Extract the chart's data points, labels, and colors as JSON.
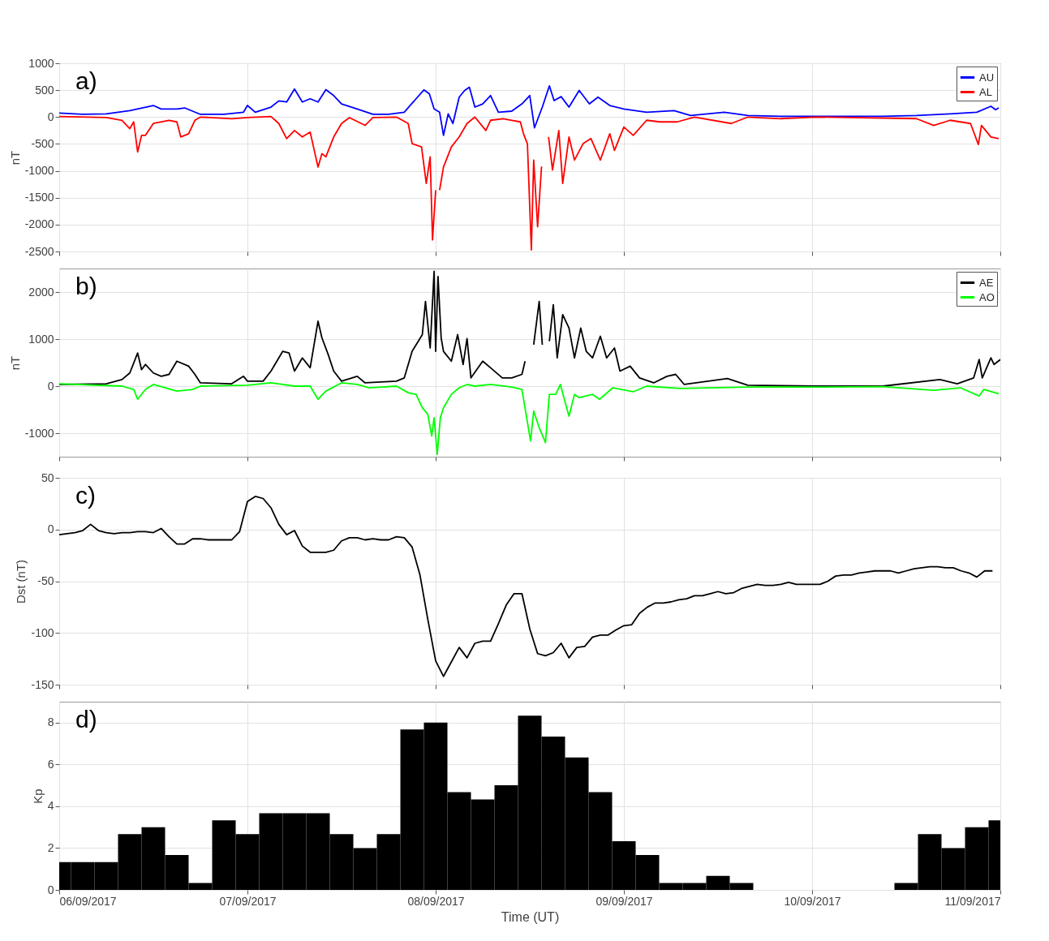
{
  "chart_data": [
    {
      "type": "line",
      "ylabel": "nT",
      "annotations": [
        "a)"
      ],
      "xlim": [
        "2017-09-06T00:00",
        "2017-09-11T00:00"
      ],
      "ylim": [
        -2500,
        1000
      ],
      "yticks": [
        -2500,
        -2000,
        -1500,
        -1000,
        -500,
        0,
        500,
        1000
      ],
      "xticks": [
        {
          "value": "2017-09-06T00:00",
          "label": null
        },
        {
          "value": "2017-09-07T00:00",
          "label": null
        },
        {
          "value": "2017-09-08T00:00",
          "label": null
        },
        {
          "value": "2017-09-09T00:00",
          "label": null
        },
        {
          "value": "2017-09-10T00:00",
          "label": null
        },
        {
          "value": "2017-09-11T00:00",
          "label": null
        }
      ],
      "tick_labels": "y",
      "grid": true,
      "legend": "top right",
      "line_style": "solid",
      "marker": "none",
      "series": [
        {
          "name": "AU",
          "color": "#0000ff",
          "x": [
            "2017-09-06T00:00",
            "2017-09-06T03:00",
            "2017-09-06T06:00",
            "2017-09-06T09:00",
            "2017-09-06T12:00",
            "2017-09-06T13:00",
            "2017-09-06T15:00",
            "2017-09-06T16:00",
            "2017-09-06T18:00",
            "2017-09-06T21:00",
            "2017-09-06T23:30",
            "2017-09-07T00:00",
            "2017-09-07T01:00",
            "2017-09-07T03:00",
            "2017-09-07T04:00",
            "2017-09-07T05:00",
            "2017-09-07T06:00",
            "2017-09-07T07:00",
            "2017-09-07T08:00",
            "2017-09-07T09:00",
            "2017-09-07T10:00",
            "2017-09-07T11:00",
            "2017-09-07T12:00",
            "2017-09-07T14:00",
            "2017-09-07T16:00",
            "2017-09-07T18:00",
            "2017-09-07T20:00",
            "2017-09-07T21:30",
            "2017-09-07T22:30",
            "2017-09-07T23:12",
            "2017-09-07T23:48",
            "2017-09-08T00:30",
            "2017-09-08T01:00",
            "2017-09-08T01:36",
            "2017-09-08T02:12",
            "2017-09-08T03:00",
            "2017-09-08T03:42",
            "2017-09-08T04:18",
            "2017-09-08T05:00",
            "2017-09-08T06:00",
            "2017-09-08T07:00",
            "2017-09-08T08:00",
            "2017-09-08T09:42",
            "2017-09-08T11:00",
            "2017-09-08T12:00",
            "2017-09-08T12:36",
            "2017-09-08T13:36",
            "2017-09-08T14:30",
            "2017-09-08T15:06",
            "2017-09-08T16:00",
            "2017-09-08T17:00",
            "2017-09-08T18:18",
            "2017-09-08T19:36",
            "2017-09-08T20:42",
            "2017-09-08T22:12",
            "2017-09-09T00:00",
            "2017-09-09T02:54",
            "2017-09-09T06:24",
            "2017-09-09T08:30",
            "2017-09-09T12:48",
            "2017-09-09T15:48",
            "2017-09-09T20:00",
            "2017-09-10T00:24",
            "2017-09-10T04:42",
            "2017-09-10T09:00",
            "2017-09-10T13:18",
            "2017-09-10T17:36",
            "2017-09-10T21:00",
            "2017-09-10T22:48",
            "2017-09-10T23:24",
            "2017-09-10T23:48"
          ],
          "values": [
            75,
            50,
            60,
            120,
            215,
            150,
            150,
            170,
            50,
            50,
            90,
            215,
            90,
            185,
            300,
            280,
            520,
            280,
            340,
            280,
            510,
            400,
            245,
            150,
            50,
            50,
            90,
            340,
            505,
            430,
            150,
            90,
            -340,
            60,
            -120,
            370,
            495,
            555,
            185,
            245,
            400,
            90,
            110,
            245,
            400,
            -200,
            185,
            580,
            305,
            380,
            185,
            495,
            245,
            370,
            215,
            150,
            90,
            120,
            30,
            90,
            30,
            15,
            15,
            15,
            15,
            30,
            60,
            90,
            200,
            135,
            170
          ]
        },
        {
          "name": "AL",
          "color": "#ff0000",
          "x": [
            "2017-09-06T00:00",
            "2017-09-06T06:00",
            "2017-09-06T08:00",
            "2017-09-06T09:00",
            "2017-09-06T09:30",
            "2017-09-06T10:00",
            "2017-09-06T10:30",
            "2017-09-06T11:00",
            "2017-09-06T12:00",
            "2017-09-06T14:00",
            "2017-09-06T15:00",
            "2017-09-06T15:30",
            "2017-09-06T16:30",
            "2017-09-06T17:18",
            "2017-09-06T18:00",
            "2017-09-06T22:00",
            "2017-09-07T00:00",
            "2017-09-07T03:00",
            "2017-09-07T04:00",
            "2017-09-07T05:00",
            "2017-09-07T06:00",
            "2017-09-07T07:00",
            "2017-09-07T08:00",
            "2017-09-07T09:00",
            "2017-09-07T09:30",
            "2017-09-07T10:00",
            "2017-09-07T11:00",
            "2017-09-07T12:00",
            "2017-09-07T13:00",
            "2017-09-07T15:00",
            "2017-09-07T16:00",
            "2017-09-07T19:00",
            "2017-09-07T20:30",
            "2017-09-07T21:00",
            "2017-09-07T22:12",
            "2017-09-07T22:48",
            "2017-09-07T23:18",
            "2017-09-07T23:36",
            "2017-09-08T00:00",
            "2017-09-08T00:12",
            "2017-09-08T00:30",
            "2017-09-08T01:00",
            "2017-09-08T02:00",
            "2017-09-08T03:00",
            "2017-09-08T04:00",
            "2017-09-08T05:00",
            "2017-09-08T06:24",
            "2017-09-08T07:00",
            "2017-09-08T08:36",
            "2017-09-08T09:42",
            "2017-09-08T10:48",
            "2017-09-08T11:12",
            "2017-09-08T11:42",
            "2017-09-08T12:12",
            "2017-09-08T12:30",
            "2017-09-08T13:00",
            "2017-09-08T13:30",
            "2017-09-08T14:00",
            "2017-09-08T14:24",
            "2017-09-08T14:54",
            "2017-09-08T15:42",
            "2017-09-08T16:12",
            "2017-09-08T17:00",
            "2017-09-08T17:42",
            "2017-09-08T18:48",
            "2017-09-08T19:48",
            "2017-09-08T21:00",
            "2017-09-08T22:12",
            "2017-09-08T22:48",
            "2017-09-09T00:00",
            "2017-09-09T01:12",
            "2017-09-09T02:54",
            "2017-09-09T04:36",
            "2017-09-09T06:48",
            "2017-09-09T09:00",
            "2017-09-09T13:42",
            "2017-09-09T15:48",
            "2017-09-09T20:00",
            "2017-09-10T00:24",
            "2017-09-10T04:42",
            "2017-09-10T13:18",
            "2017-09-10T15:30",
            "2017-09-10T17:36",
            "2017-09-10T20:12",
            "2017-09-10T21:12",
            "2017-09-10T21:36",
            "2017-09-10T22:48",
            "2017-09-10T23:48"
          ],
          "values": [
            10,
            -10,
            -60,
            -215,
            -90,
            -650,
            -340,
            -340,
            -120,
            -60,
            -90,
            -370,
            -310,
            -60,
            0,
            -30,
            -10,
            10,
            -120,
            -400,
            -250,
            -370,
            -280,
            -930,
            -680,
            -740,
            -370,
            -120,
            -10,
            -155,
            -10,
            0,
            -120,
            -495,
            -555,
            -1235,
            -740,
            -2285,
            -1360,
            null,
            -1360,
            -930,
            -555,
            -370,
            -120,
            0,
            -250,
            -60,
            -30,
            -60,
            -90,
            -310,
            -500,
            -2470,
            -800,
            -2040,
            -920,
            null,
            -370,
            -985,
            -250,
            -1235,
            -370,
            -800,
            -495,
            -400,
            -800,
            -310,
            -620,
            -185,
            -340,
            -60,
            -90,
            -90,
            0,
            -120,
            0,
            -30,
            0,
            -10,
            -30,
            -155,
            -60,
            -120,
            -510,
            -155,
            -370,
            -400
          ]
        }
      ]
    },
    {
      "type": "line",
      "ylabel": "nT",
      "annotations": [
        "b)"
      ],
      "xlim": [
        "2017-09-06T00:00",
        "2017-09-11T00:00"
      ],
      "ylim": [
        -1500,
        2500
      ],
      "yticks": [
        -1000,
        0,
        1000,
        2000
      ],
      "xticks": [
        {
          "value": "2017-09-06T00:00",
          "label": null
        },
        {
          "value": "2017-09-07T00:00",
          "label": null
        },
        {
          "value": "2017-09-08T00:00",
          "label": null
        },
        {
          "value": "2017-09-09T00:00",
          "label": null
        },
        {
          "value": "2017-09-10T00:00",
          "label": null
        },
        {
          "value": "2017-09-11T00:00",
          "label": null
        }
      ],
      "tick_labels": "y",
      "grid": true,
      "legend": "top right",
      "line_style": "solid",
      "marker": "none",
      "series": [
        {
          "name": "AE",
          "color": "#000000",
          "x": [
            "2017-09-06T00:00",
            "2017-09-06T06:00",
            "2017-09-06T08:00",
            "2017-09-06T09:00",
            "2017-09-06T10:00",
            "2017-09-06T10:30",
            "2017-09-06T11:00",
            "2017-09-06T12:00",
            "2017-09-06T13:00",
            "2017-09-06T14:00",
            "2017-09-06T15:00",
            "2017-09-06T16:30",
            "2017-09-06T17:18",
            "2017-09-06T18:00",
            "2017-09-06T22:00",
            "2017-09-06T23:30",
            "2017-09-07T00:00",
            "2017-09-07T02:00",
            "2017-09-07T03:00",
            "2017-09-07T04:30",
            "2017-09-07T05:18",
            "2017-09-07T06:00",
            "2017-09-07T07:00",
            "2017-09-07T08:00",
            "2017-09-07T09:00",
            "2017-09-07T09:30",
            "2017-09-07T10:18",
            "2017-09-07T11:00",
            "2017-09-07T12:00",
            "2017-09-07T14:00",
            "2017-09-07T15:00",
            "2017-09-07T19:00",
            "2017-09-07T20:00",
            "2017-09-07T21:00",
            "2017-09-07T22:18",
            "2017-09-07T22:42",
            "2017-09-07T23:18",
            "2017-09-07T23:48",
            "2017-09-08T00:00",
            "2017-09-08T00:18",
            "2017-09-08T00:42",
            "2017-09-08T01:00",
            "2017-09-08T02:00",
            "2017-09-08T02:48",
            "2017-09-08T03:30",
            "2017-09-08T04:00",
            "2017-09-08T04:30",
            "2017-09-08T06:00",
            "2017-09-08T07:00",
            "2017-09-08T08:30",
            "2017-09-08T09:42",
            "2017-09-08T11:00",
            "2017-09-08T11:24",
            "2017-09-08T12:12",
            "2017-09-08T12:30",
            "2017-09-08T13:12",
            "2017-09-08T13:36",
            "2017-09-08T14:00",
            "2017-09-08T14:30",
            "2017-09-08T15:00",
            "2017-09-08T15:30",
            "2017-09-08T16:12",
            "2017-09-08T17:00",
            "2017-09-08T17:42",
            "2017-09-08T18:30",
            "2017-09-08T19:12",
            "2017-09-08T20:00",
            "2017-09-08T21:00",
            "2017-09-08T21:48",
            "2017-09-08T22:48",
            "2017-09-08T23:30",
            "2017-09-09T00:48",
            "2017-09-09T02:00",
            "2017-09-09T03:48",
            "2017-09-09T05:30",
            "2017-09-09T06:36",
            "2017-09-09T07:42",
            "2017-09-09T13:12",
            "2017-09-09T15:48",
            "2017-09-10T00:24",
            "2017-09-10T09:00",
            "2017-09-10T16:18",
            "2017-09-10T18:30",
            "2017-09-10T20:36",
            "2017-09-10T21:18",
            "2017-09-10T21:42",
            "2017-09-10T22:48",
            "2017-09-10T23:12",
            "2017-09-11T00:00"
          ],
          "values": [
            35,
            50,
            140,
            280,
            705,
            350,
            460,
            280,
            210,
            250,
            530,
            425,
            250,
            70,
            50,
            210,
            105,
            105,
            320,
            740,
            705,
            320,
            600,
            390,
            1380,
            1025,
            670,
            320,
            105,
            210,
            70,
            105,
            175,
            740,
            1095,
            1800,
            810,
            2440,
            740,
            2330,
            1025,
            740,
            530,
            1095,
            460,
            1010,
            175,
            530,
            390,
            175,
            175,
            250,
            530,
            null,
            880,
            1800,
            880,
            null,
            955,
            1730,
            600,
            1520,
            1235,
            600,
            1235,
            740,
            600,
            1060,
            600,
            810,
            320,
            425,
            175,
            70,
            210,
            250,
            35,
            160,
            20,
            0,
            0,
            140,
            50,
            175,
            565,
            175,
            600,
            460,
            565
          ]
        },
        {
          "name": "AO",
          "color": "#00ff00",
          "x": [
            "2017-09-06T00:00",
            "2017-09-06T08:00",
            "2017-09-06T09:30",
            "2017-09-06T10:00",
            "2017-09-06T11:00",
            "2017-09-06T12:00",
            "2017-09-06T15:00",
            "2017-09-06T17:00",
            "2017-09-06T18:00",
            "2017-09-07T00:00",
            "2017-09-07T03:00",
            "2017-09-07T06:00",
            "2017-09-07T08:00",
            "2017-09-07T09:00",
            "2017-09-07T10:00",
            "2017-09-07T12:00",
            "2017-09-07T14:00",
            "2017-09-07T15:30",
            "2017-09-07T19:00",
            "2017-09-07T20:30",
            "2017-09-07T21:30",
            "2017-09-07T22:18",
            "2017-09-07T23:00",
            "2017-09-07T23:30",
            "2017-09-07T23:48",
            "2017-09-08T00:12",
            "2017-09-08T00:36",
            "2017-09-08T01:00",
            "2017-09-08T02:00",
            "2017-09-08T03:00",
            "2017-09-08T04:00",
            "2017-09-08T05:00",
            "2017-09-08T07:00",
            "2017-09-08T09:42",
            "2017-09-08T11:00",
            "2017-09-08T12:06",
            "2017-09-08T12:30",
            "2017-09-08T13:12",
            "2017-09-08T14:00",
            "2017-09-08T14:30",
            "2017-09-08T15:18",
            "2017-09-08T15:54",
            "2017-09-08T17:00",
            "2017-09-08T17:42",
            "2017-09-08T18:18",
            "2017-09-08T20:00",
            "2017-09-08T20:54",
            "2017-09-08T22:36",
            "2017-09-09T01:12",
            "2017-09-09T02:54",
            "2017-09-09T07:12",
            "2017-09-09T15:48",
            "2017-09-10T00:24",
            "2017-09-10T09:00",
            "2017-09-10T15:30",
            "2017-09-10T18:54",
            "2017-09-10T21:18",
            "2017-09-10T21:54",
            "2017-09-10T23:48"
          ],
          "values": [
            50,
            0,
            -70,
            -280,
            -70,
            35,
            -105,
            -70,
            0,
            20,
            70,
            0,
            0,
            -280,
            -105,
            70,
            35,
            -35,
            0,
            -140,
            -175,
            -460,
            -600,
            -1060,
            -670,
            -1450,
            -670,
            -460,
            -175,
            -35,
            35,
            0,
            35,
            -20,
            -70,
            -1165,
            -530,
            -880,
            -1200,
            -175,
            -175,
            35,
            -640,
            -175,
            -245,
            -175,
            -280,
            -35,
            -120,
            0,
            -50,
            -20,
            -20,
            -10,
            -90,
            -35,
            -210,
            -70,
            -160
          ]
        }
      ]
    },
    {
      "type": "line",
      "ylabel": "Dst (nT)",
      "annotations": [
        "c)"
      ],
      "color": "#000000",
      "xlim": [
        "2017-09-06T00:00",
        "2017-09-11T00:00"
      ],
      "ylim": [
        -150,
        50
      ],
      "yticks": [
        -150,
        -100,
        -50,
        0,
        50
      ],
      "xticks": [
        {
          "value": "2017-09-06T00:00",
          "label": null
        },
        {
          "value": "2017-09-07T00:00",
          "label": null
        },
        {
          "value": "2017-09-08T00:00",
          "label": null
        },
        {
          "value": "2017-09-09T00:00",
          "label": null
        },
        {
          "value": "2017-09-10T00:00",
          "label": null
        },
        {
          "value": "2017-09-11T00:00",
          "label": null
        }
      ],
      "tick_labels": "y",
      "grid": true,
      "line_style": "solid",
      "marker": "none",
      "x": [
        "2017-09-06T00:00",
        "2017-09-06T01:00",
        "2017-09-06T02:00",
        "2017-09-06T03:00",
        "2017-09-06T04:00",
        "2017-09-06T05:00",
        "2017-09-06T06:00",
        "2017-09-06T07:00",
        "2017-09-06T08:00",
        "2017-09-06T09:00",
        "2017-09-06T10:00",
        "2017-09-06T11:00",
        "2017-09-06T12:00",
        "2017-09-06T13:00",
        "2017-09-06T14:00",
        "2017-09-06T15:00",
        "2017-09-06T16:00",
        "2017-09-06T17:00",
        "2017-09-06T18:00",
        "2017-09-06T19:00",
        "2017-09-06T20:00",
        "2017-09-06T21:00",
        "2017-09-06T22:00",
        "2017-09-06T23:00",
        "2017-09-07T00:00",
        "2017-09-07T01:00",
        "2017-09-07T02:00",
        "2017-09-07T03:00",
        "2017-09-07T04:00",
        "2017-09-07T05:00",
        "2017-09-07T06:00",
        "2017-09-07T07:00",
        "2017-09-07T08:00",
        "2017-09-07T09:00",
        "2017-09-07T10:00",
        "2017-09-07T11:00",
        "2017-09-07T12:00",
        "2017-09-07T13:00",
        "2017-09-07T14:00",
        "2017-09-07T15:00",
        "2017-09-07T16:00",
        "2017-09-07T17:00",
        "2017-09-07T18:00",
        "2017-09-07T19:00",
        "2017-09-07T20:00",
        "2017-09-07T21:00",
        "2017-09-07T22:00",
        "2017-09-07T23:00",
        "2017-09-08T00:00",
        "2017-09-08T01:00",
        "2017-09-08T02:00",
        "2017-09-08T03:00",
        "2017-09-08T04:00",
        "2017-09-08T05:00",
        "2017-09-08T06:00",
        "2017-09-08T07:00",
        "2017-09-08T08:00",
        "2017-09-08T09:00",
        "2017-09-08T10:00",
        "2017-09-08T11:00",
        "2017-09-08T12:00",
        "2017-09-08T13:00",
        "2017-09-08T14:00",
        "2017-09-08T15:00",
        "2017-09-08T16:00",
        "2017-09-08T17:00",
        "2017-09-08T18:00",
        "2017-09-08T19:00",
        "2017-09-08T20:00",
        "2017-09-08T21:00",
        "2017-09-08T22:00",
        "2017-09-08T23:00",
        "2017-09-09T00:00",
        "2017-09-09T01:00",
        "2017-09-09T02:00",
        "2017-09-09T03:00",
        "2017-09-09T04:00",
        "2017-09-09T05:00",
        "2017-09-09T06:00",
        "2017-09-09T07:00",
        "2017-09-09T08:00",
        "2017-09-09T09:00",
        "2017-09-09T10:00",
        "2017-09-09T11:00",
        "2017-09-09T12:00",
        "2017-09-09T13:00",
        "2017-09-09T14:00",
        "2017-09-09T15:00",
        "2017-09-09T16:00",
        "2017-09-09T17:00",
        "2017-09-09T18:00",
        "2017-09-09T19:00",
        "2017-09-09T20:00",
        "2017-09-09T21:00",
        "2017-09-09T22:00",
        "2017-09-09T23:00",
        "2017-09-10T00:00",
        "2017-09-10T01:00",
        "2017-09-10T02:00",
        "2017-09-10T03:00",
        "2017-09-10T04:00",
        "2017-09-10T05:00",
        "2017-09-10T06:00",
        "2017-09-10T07:00",
        "2017-09-10T08:00",
        "2017-09-10T09:00",
        "2017-09-10T10:00",
        "2017-09-10T11:00",
        "2017-09-10T12:00",
        "2017-09-10T13:00",
        "2017-09-10T14:00",
        "2017-09-10T15:00",
        "2017-09-10T16:00",
        "2017-09-10T17:00",
        "2017-09-10T18:00",
        "2017-09-10T19:00",
        "2017-09-10T20:00",
        "2017-09-10T21:00",
        "2017-09-10T22:00",
        "2017-09-10T23:00"
      ],
      "values": [
        -5,
        -4,
        -3,
        -1,
        5,
        -1,
        -3,
        -4,
        -3,
        -3,
        -2,
        -2,
        -3,
        1,
        -7,
        -14,
        -14,
        -9,
        -9,
        -10,
        -10,
        -10,
        -10,
        -2,
        27,
        32,
        30,
        21,
        5,
        -5,
        -1,
        -16,
        -22,
        -22,
        -22,
        -20,
        -11,
        -8,
        -8,
        -10,
        -9,
        -10,
        -10,
        -7,
        -8,
        -17,
        -44,
        -87,
        -127,
        -142,
        -128,
        -114,
        -124,
        -110,
        -108,
        -108,
        -91,
        -73,
        -62,
        -62,
        -96,
        -120,
        -122,
        -119,
        -110,
        -124,
        -114,
        -113,
        -104,
        -102,
        -102,
        -97,
        -93,
        -92,
        -81,
        -75,
        -71,
        -71,
        -70,
        -68,
        -67,
        -64,
        -64,
        -62,
        -60,
        -62,
        -61,
        -57,
        -55,
        -53,
        -54,
        -54,
        -53,
        -51,
        -53,
        -53,
        -53,
        -53,
        -50,
        -45,
        -44,
        -44,
        -42,
        -41,
        -40,
        -40,
        -40,
        -42,
        -40,
        -38,
        -37,
        -36,
        -36,
        -37,
        -37,
        -40,
        -42,
        -46,
        -40,
        -40
      ]
    },
    {
      "type": "bar",
      "ylabel": "Kp",
      "xlabel": "Time (UT)",
      "annotations": [
        "d)"
      ],
      "color": "#000000",
      "xlim": [
        "2017-09-06T00:00",
        "2017-09-11T00:00"
      ],
      "ylim": [
        0,
        9
      ],
      "yticks": [
        0,
        2,
        4,
        6,
        8
      ],
      "xticks": [
        {
          "value": "2017-09-06T00:00",
          "label": "06/09/2017"
        },
        {
          "value": "2017-09-07T00:00",
          "label": "07/09/2017"
        },
        {
          "value": "2017-09-08T00:00",
          "label": "08/09/2017"
        },
        {
          "value": "2017-09-09T00:00",
          "label": "09/09/2017"
        },
        {
          "value": "2017-09-10T00:00",
          "label": "10/09/2017"
        },
        {
          "value": "2017-09-11T00:00",
          "label": "11/09/2017"
        }
      ],
      "grid": true,
      "x": [
        "2017-09-06T00:00",
        "2017-09-06T03:00",
        "2017-09-06T06:00",
        "2017-09-06T09:00",
        "2017-09-06T12:00",
        "2017-09-06T15:00",
        "2017-09-06T18:00",
        "2017-09-06T21:00",
        "2017-09-07T00:00",
        "2017-09-07T03:00",
        "2017-09-07T06:00",
        "2017-09-07T09:00",
        "2017-09-07T12:00",
        "2017-09-07T15:00",
        "2017-09-07T18:00",
        "2017-09-07T21:00",
        "2017-09-08T00:00",
        "2017-09-08T03:00",
        "2017-09-08T06:00",
        "2017-09-08T09:00",
        "2017-09-08T12:00",
        "2017-09-08T15:00",
        "2017-09-08T18:00",
        "2017-09-08T21:00",
        "2017-09-09T00:00",
        "2017-09-09T03:00",
        "2017-09-09T06:00",
        "2017-09-09T09:00",
        "2017-09-09T12:00",
        "2017-09-09T15:00",
        "2017-09-09T18:00",
        "2017-09-09T21:00",
        "2017-09-10T00:00",
        "2017-09-10T03:00",
        "2017-09-10T06:00",
        "2017-09-10T09:00",
        "2017-09-10T12:00",
        "2017-09-10T15:00",
        "2017-09-10T18:00",
        "2017-09-10T21:00",
        "2017-09-11T00:00"
      ],
      "values": [
        1.33,
        1.33,
        1.33,
        2.67,
        3,
        1.67,
        0.33,
        3.33,
        2.67,
        3.67,
        3.67,
        3.67,
        2.67,
        2,
        2.67,
        7.67,
        8,
        4.67,
        4.33,
        5,
        8.33,
        7.33,
        6.33,
        4.67,
        2.33,
        1.67,
        0.33,
        0.33,
        0.67,
        0.33,
        0,
        0,
        0,
        0,
        0,
        0,
        0.33,
        2.67,
        2,
        3,
        3.33
      ]
    }
  ]
}
